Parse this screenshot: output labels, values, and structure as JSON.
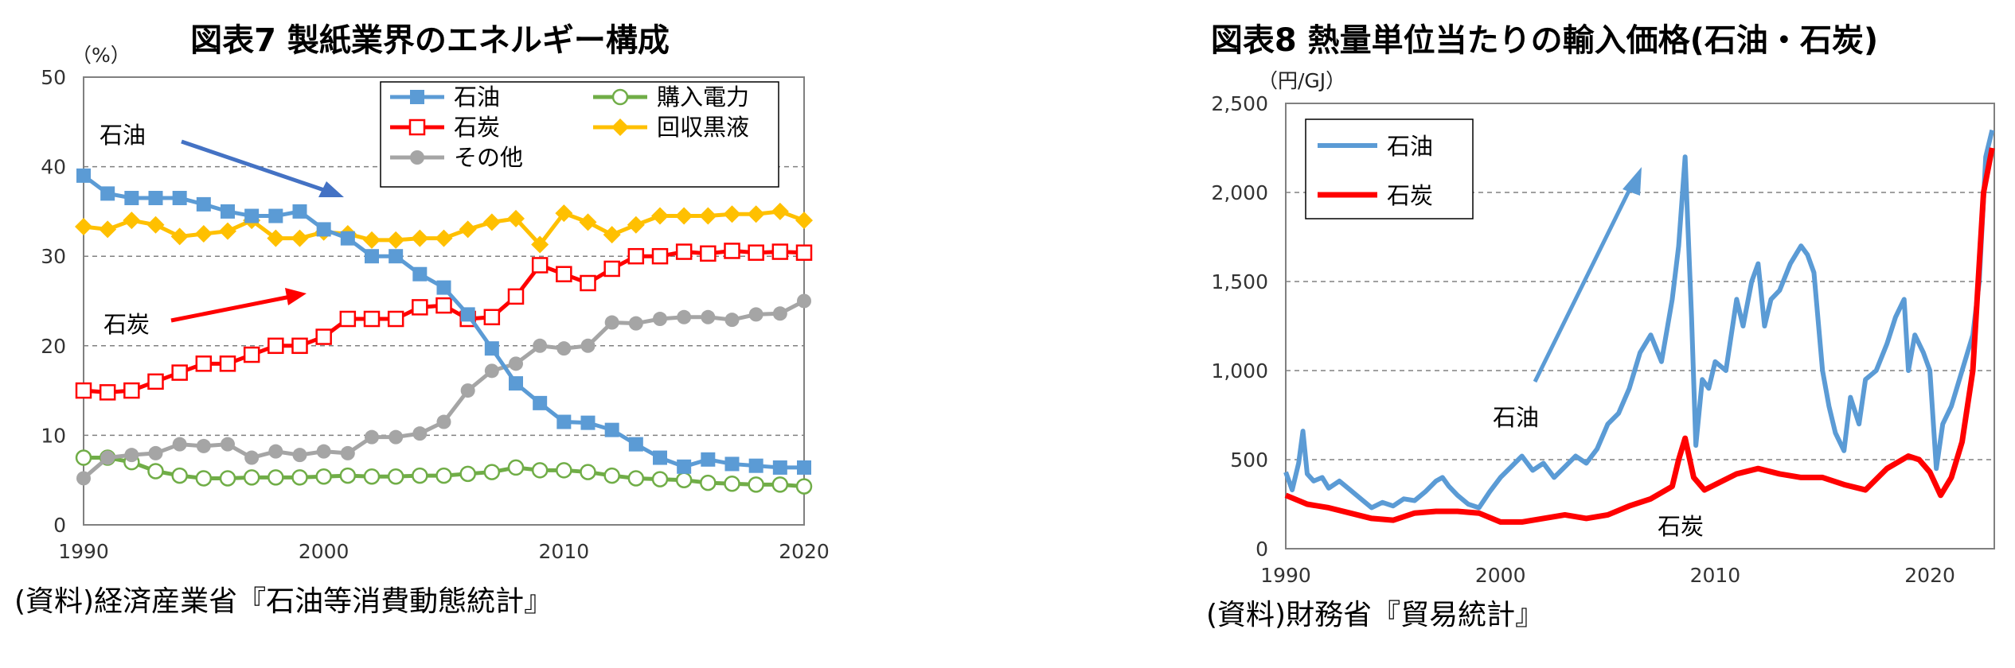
{
  "chart_data": [
    {
      "type": "line",
      "title": "図表7 製紙業界のエネルギー構成",
      "unit": "（%）",
      "source": "(資料)経済産業省『石油等消費動態統計』",
      "x": [
        1990,
        1991,
        1992,
        1993,
        1994,
        1995,
        1996,
        1997,
        1998,
        1999,
        2000,
        2001,
        2002,
        2003,
        2004,
        2005,
        2006,
        2007,
        2008,
        2009,
        2010,
        2011,
        2012,
        2013,
        2014,
        2015,
        2016,
        2017,
        2018,
        2019,
        2020
      ],
      "xticks": [
        "1990",
        "2000",
        "2010",
        "2020"
      ],
      "yticks": [
        "0",
        "10",
        "20",
        "30",
        "40",
        "50"
      ],
      "ylim": [
        0,
        50
      ],
      "xlim": [
        1990,
        2020
      ],
      "grid": true,
      "legend_placement": "top-right",
      "series": [
        {
          "name": "石油",
          "color": "#5b9bd5",
          "marker": "square-filled",
          "values": [
            39,
            37,
            36.5,
            36.5,
            36.5,
            35.8,
            35,
            34.5,
            34.5,
            35,
            33,
            32,
            30,
            30,
            28,
            26.5,
            23.5,
            19.7,
            15.8,
            13.6,
            11.5,
            11.4,
            10.6,
            9,
            7.5,
            6.5,
            7.3,
            6.8,
            6.6,
            6.4,
            6.4
          ]
        },
        {
          "name": "石炭",
          "color": "#ff0000",
          "marker": "square-open",
          "values": [
            15,
            14.8,
            15,
            16,
            17,
            18,
            18,
            19,
            20,
            20,
            21,
            23,
            23,
            23,
            24.3,
            24.5,
            23,
            23.2,
            25.5,
            29,
            28,
            27,
            28.6,
            30,
            30,
            30.5,
            30.3,
            30.6,
            30.4,
            30.5,
            30.4
          ]
        },
        {
          "name": "その他",
          "color": "#a5a5a5",
          "marker": "circle-filled",
          "values": [
            5.2,
            7.5,
            7.8,
            8,
            9,
            8.8,
            9,
            7.5,
            8.2,
            7.8,
            8.2,
            8,
            9.8,
            9.8,
            10.2,
            11.5,
            15,
            17.2,
            18,
            20,
            19.7,
            20,
            22.6,
            22.5,
            23,
            23.2,
            23.2,
            22.9,
            23.5,
            23.6,
            25
          ]
        },
        {
          "name": "購入電力",
          "color": "#70ad47",
          "marker": "circle-open",
          "values": [
            7.5,
            7.5,
            7,
            6,
            5.5,
            5.2,
            5.2,
            5.3,
            5.3,
            5.3,
            5.4,
            5.5,
            5.4,
            5.4,
            5.5,
            5.5,
            5.7,
            5.9,
            6.4,
            6.1,
            6.1,
            5.9,
            5.5,
            5.2,
            5.1,
            5,
            4.7,
            4.6,
            4.5,
            4.5,
            4.3
          ]
        },
        {
          "name": "回収黒液",
          "color": "#ffc000",
          "marker": "diamond-filled",
          "values": [
            33.3,
            33,
            34,
            33.5,
            32.2,
            32.5,
            32.8,
            34,
            32,
            32,
            32.7,
            32.5,
            31.8,
            31.8,
            32,
            32,
            33,
            33.8,
            34.2,
            31.3,
            34.8,
            33.8,
            32.4,
            33.5,
            34.5,
            34.5,
            34.5,
            34.7,
            34.7,
            35,
            34
          ]
        }
      ],
      "annotations": [
        {
          "text": "石油",
          "arrow_color": "#4472c4"
        },
        {
          "text": "石炭",
          "arrow_color": "#ff0000"
        }
      ]
    },
    {
      "type": "line",
      "title": "図表8 熱量単位当たりの輸入価格(石油・石炭)",
      "unit": "（円/GJ）",
      "source": "(資料)財務省『貿易統計』",
      "xticks": [
        "1990",
        "2000",
        "2010",
        "2020"
      ],
      "yticks": [
        "0",
        "500",
        "1,000",
        "1,500",
        "2,000",
        "2,500"
      ],
      "ylim": [
        0,
        2500
      ],
      "xlim": [
        1990,
        2023
      ],
      "grid": true,
      "legend_placement": "top-left",
      "series": [
        {
          "name": "石油",
          "color": "#5b9bd5",
          "x": [
            1990,
            1990.3,
            1990.6,
            1990.8,
            1991,
            1991.3,
            1991.7,
            1992,
            1992.5,
            1993,
            1993.5,
            1994,
            1994.5,
            1995,
            1995.5,
            1996,
            1996.5,
            1997,
            1997.3,
            1997.6,
            1998,
            1998.5,
            1999,
            1999.5,
            2000,
            2000.5,
            2001,
            2001.5,
            2002,
            2002.5,
            2003,
            2003.5,
            2004,
            2004.5,
            2005,
            2005.5,
            2006,
            2006.5,
            2007,
            2007.5,
            2008,
            2008.3,
            2008.6,
            2008.9,
            2009.1,
            2009.4,
            2009.7,
            2010,
            2010.5,
            2011,
            2011.3,
            2011.7,
            2012,
            2012.3,
            2012.6,
            2013,
            2013.5,
            2014,
            2014.3,
            2014.6,
            2015,
            2015.3,
            2015.6,
            2016,
            2016.3,
            2016.7,
            2017,
            2017.5,
            2018,
            2018.4,
            2018.8,
            2019,
            2019.3,
            2019.7,
            2020,
            2020.3,
            2020.6,
            2021,
            2021.5,
            2022,
            2022.3,
            2022.6,
            2022.9
          ],
          "values": [
            430,
            330,
            480,
            660,
            420,
            380,
            400,
            340,
            380,
            330,
            280,
            230,
            260,
            240,
            280,
            270,
            320,
            380,
            400,
            350,
            300,
            250,
            230,
            320,
            400,
            460,
            520,
            440,
            480,
            400,
            460,
            520,
            480,
            560,
            700,
            760,
            900,
            1100,
            1200,
            1050,
            1400,
            1700,
            2200,
            1300,
            580,
            950,
            900,
            1050,
            1000,
            1400,
            1250,
            1500,
            1600,
            1250,
            1400,
            1450,
            1600,
            1700,
            1650,
            1550,
            1000,
            800,
            650,
            550,
            850,
            700,
            950,
            1000,
            1150,
            1300,
            1400,
            1000,
            1200,
            1100,
            1000,
            450,
            700,
            800,
            1000,
            1200,
            1500,
            2200,
            2350
          ]
        },
        {
          "name": "石炭",
          "color": "#ff0000",
          "x": [
            1990,
            1991,
            1992,
            1993,
            1994,
            1995,
            1996,
            1997,
            1998,
            1999,
            2000,
            2001,
            2002,
            2003,
            2004,
            2005,
            2006,
            2007,
            2008,
            2008.3,
            2008.6,
            2009,
            2009.5,
            2010,
            2011,
            2012,
            2013,
            2014,
            2015,
            2016,
            2017,
            2018,
            2019,
            2019.5,
            2020,
            2020.5,
            2021,
            2021.5,
            2022,
            2022.5,
            2022.9
          ],
          "values": [
            300,
            250,
            230,
            200,
            170,
            160,
            200,
            210,
            210,
            200,
            150,
            150,
            170,
            190,
            170,
            190,
            240,
            280,
            350,
            500,
            620,
            400,
            330,
            360,
            420,
            450,
            420,
            400,
            400,
            360,
            330,
            450,
            520,
            500,
            430,
            300,
            400,
            600,
            1000,
            2000,
            2250
          ]
        }
      ],
      "annotations": [
        {
          "text": "石油",
          "arrow_color": "#5b9bd5"
        },
        {
          "text": "石炭"
        }
      ]
    }
  ]
}
